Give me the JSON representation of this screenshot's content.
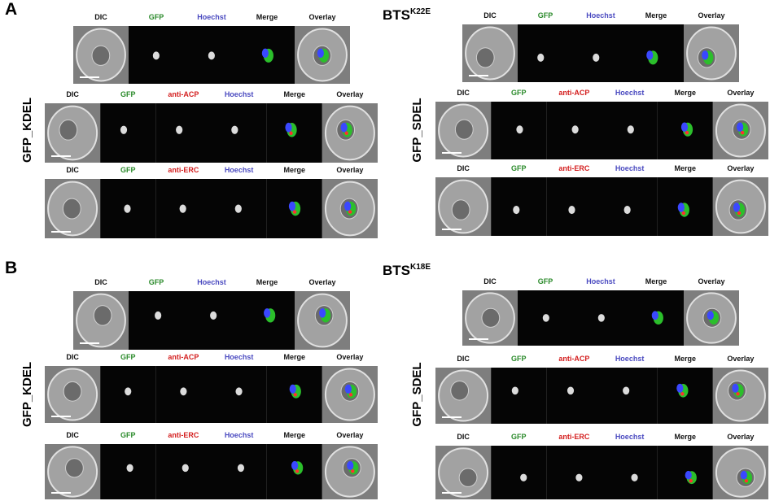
{
  "panels": [
    {
      "label": "A",
      "groups": [
        {
          "side_label": "GFP_KDEL",
          "rows": [
            [
              "DIC",
              "GFP",
              "Hoechst",
              "Merge",
              "Overlay"
            ],
            [
              "DIC",
              "GFP",
              "anti-ACP",
              "Hoechst",
              "Merge",
              "Overlay"
            ],
            [
              "DIC",
              "GFP",
              "anti-ERC",
              "Hoechst",
              "Merge",
              "Overlay"
            ]
          ]
        },
        {
          "heading": "BTS",
          "heading_sup": "K22E",
          "side_label": "GFP_SDEL",
          "rows": [
            [
              "DIC",
              "GFP",
              "Hoechst",
              "Merge",
              "Overlay"
            ],
            [
              "DIC",
              "GFP",
              "anti-ACP",
              "Hoechst",
              "Merge",
              "Overlay"
            ],
            [
              "DIC",
              "GFP",
              "anti-ERC",
              "Hoechst",
              "Merge",
              "Overlay"
            ]
          ]
        }
      ]
    },
    {
      "label": "B",
      "groups": [
        {
          "side_label": "GFP_KDEL",
          "rows": [
            [
              "DIC",
              "GFP",
              "Hoechst",
              "Merge",
              "Overlay"
            ],
            [
              "DIC",
              "GFP",
              "anti-ACP",
              "Hoechst",
              "Merge",
              "Overlay"
            ],
            [
              "DIC",
              "GFP",
              "anti-ERC",
              "Hoechst",
              "Merge",
              "Overlay"
            ]
          ]
        },
        {
          "heading": "BTS",
          "heading_sup": "K18E",
          "side_label": "GFP_SDEL",
          "rows": [
            [
              "DIC",
              "GFP",
              "Hoechst",
              "Merge",
              "Overlay"
            ],
            [
              "DIC",
              "GFP",
              "anti-ACP",
              "Hoechst",
              "Merge",
              "Overlay"
            ],
            [
              "DIC",
              "GFP",
              "anti-ERC",
              "Hoechst",
              "Merge",
              "Overlay"
            ]
          ]
        }
      ]
    }
  ]
}
